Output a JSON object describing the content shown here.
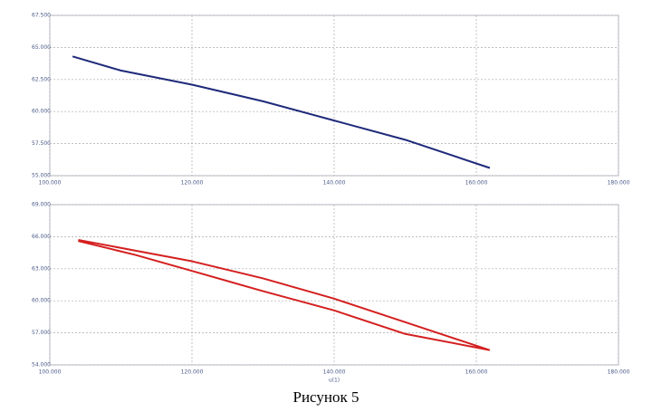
{
  "chart_data": [
    {
      "type": "line",
      "series": [
        {
          "color": "#1f2a7a",
          "x": [
            103.2,
            110,
            120,
            130,
            140,
            150,
            161.9
          ],
          "values": [
            64.3,
            63.2,
            62.1,
            60.8,
            59.3,
            57.8,
            55.6
          ]
        }
      ],
      "xlim": [
        100,
        180
      ],
      "xticks": [
        {
          "value": 100,
          "label": "100.000"
        },
        {
          "value": 120,
          "label": "120.000"
        },
        {
          "value": 140,
          "label": "140.000"
        },
        {
          "value": 160,
          "label": "160.000"
        },
        {
          "value": 180,
          "label": "180.000"
        }
      ],
      "ylim": [
        55,
        67.5
      ],
      "yticks": [
        {
          "value": 67.5,
          "label": "67.500"
        },
        {
          "value": 65,
          "label": "65.000"
        },
        {
          "value": 62.5,
          "label": "62.500"
        },
        {
          "value": 60,
          "label": "60.000"
        },
        {
          "value": 57.5,
          "label": "57.500"
        },
        {
          "value": 55,
          "label": "55.000"
        }
      ],
      "grid": true
    },
    {
      "type": "line",
      "x_label": "u(1)",
      "series": [
        {
          "color": "#d42020",
          "x": [
            104,
            112,
            120,
            130,
            140,
            150,
            161.8,
            150,
            140,
            130,
            120,
            112,
            104
          ],
          "values": [
            65.7,
            64.7,
            63.7,
            62.1,
            60.2,
            58.0,
            55.4,
            56.9,
            59.1,
            60.9,
            62.8,
            64.3,
            65.6
          ]
        }
      ],
      "xlim": [
        100,
        180
      ],
      "xticks": [
        {
          "value": 100,
          "label": "100.000"
        },
        {
          "value": 120,
          "label": "120.000"
        },
        {
          "value": 140,
          "label": "140.000"
        },
        {
          "value": 160,
          "label": "160.000"
        },
        {
          "value": 180,
          "label": "180.000"
        }
      ],
      "ylim": [
        54,
        69
      ],
      "yticks": [
        {
          "value": 69,
          "label": "69.000"
        },
        {
          "value": 66,
          "label": "66.000"
        },
        {
          "value": 63,
          "label": "63.000"
        },
        {
          "value": 60,
          "label": "60.000"
        },
        {
          "value": 57,
          "label": "57.000"
        },
        {
          "value": 54,
          "label": "54.000"
        }
      ],
      "grid": true
    }
  ],
  "caption": "Рисунок 5"
}
